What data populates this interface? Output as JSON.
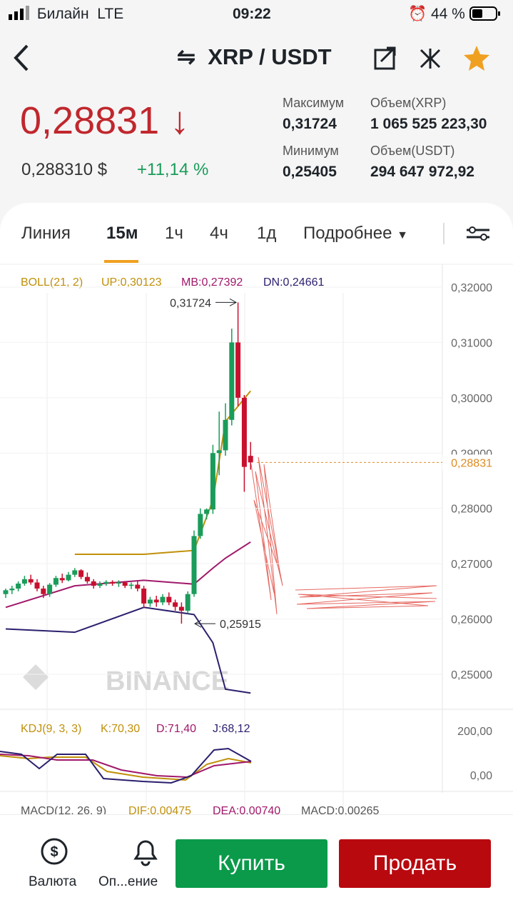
{
  "status": {
    "carrier": "Билайн",
    "network": "LTE",
    "time": "09:22",
    "battery": "44 %"
  },
  "header": {
    "pair": "XRP / USDT"
  },
  "price": {
    "last": "0,28831",
    "usd": "0,288310 $",
    "change": "+11,14 %"
  },
  "stats": {
    "high_label": "Максимум",
    "high": "0,31724",
    "low_label": "Минимум",
    "low": "0,25405",
    "vol_xrp_label": "Объем(XRP)",
    "vol_xrp": "1 065 525 223,30",
    "vol_usdt_label": "Объем(USDT)",
    "vol_usdt": "294 647 972,92"
  },
  "tabs": [
    "Линия",
    "15м",
    "1ч",
    "4ч",
    "1д",
    "Подробнее"
  ],
  "chart": {
    "boll": "BOLL(21, 2)",
    "up": "UP:0,30123",
    "mb": "MB:0,27392",
    "dn": "DN:0,24661",
    "watermark": "BINANCE",
    "ylim": [
      0.25,
      0.32
    ],
    "yticks": [
      {
        "value": 0.32,
        "label": "0,32000"
      },
      {
        "value": 0.31,
        "label": "0,31000"
      },
      {
        "value": 0.3,
        "label": "0,30000"
      },
      {
        "value": 0.29,
        "label": "0,29000"
      },
      {
        "value": 0.28,
        "label": "0,28000"
      },
      {
        "value": 0.27,
        "label": "0,27000"
      },
      {
        "value": 0.26,
        "label": "0,26000"
      },
      {
        "value": 0.25,
        "label": "0,25000"
      }
    ],
    "current": {
      "value": 0.28831,
      "label": "0,28831"
    },
    "max_note": {
      "value": 0.31724,
      "label": "0,31724"
    },
    "min_note": {
      "value": 0.25915,
      "label": "0,25915"
    },
    "open": [
      0.2645,
      0.2652,
      0.2655,
      0.2664,
      0.2672,
      0.2666,
      0.2655,
      0.2645,
      0.2662,
      0.2674,
      0.267,
      0.268,
      0.2688,
      0.2676,
      0.2668,
      0.266,
      0.2664,
      0.2667,
      0.2664,
      0.2666,
      0.266,
      0.2662,
      0.2655,
      0.2628,
      0.2635,
      0.263,
      0.264,
      0.263,
      0.2622,
      0.2615,
      0.2645,
      0.275,
      0.279,
      0.2798,
      0.29,
      0.2905,
      0.296,
      0.31,
      0.3,
      0.2895
    ],
    "high": [
      0.2655,
      0.266,
      0.2668,
      0.2678,
      0.268,
      0.2672,
      0.266,
      0.2665,
      0.2678,
      0.2682,
      0.2685,
      0.2692,
      0.269,
      0.2684,
      0.2672,
      0.2668,
      0.267,
      0.267,
      0.267,
      0.2668,
      0.2666,
      0.2668,
      0.266,
      0.264,
      0.2642,
      0.2645,
      0.2648,
      0.2635,
      0.263,
      0.265,
      0.276,
      0.28,
      0.28,
      0.2915,
      0.2975,
      0.299,
      0.3125,
      0.31724,
      0.3005,
      0.292
    ],
    "low": [
      0.2638,
      0.2645,
      0.265,
      0.266,
      0.2662,
      0.265,
      0.2638,
      0.264,
      0.2658,
      0.2665,
      0.2668,
      0.2676,
      0.2672,
      0.2664,
      0.2655,
      0.2656,
      0.266,
      0.266,
      0.2658,
      0.2656,
      0.2654,
      0.265,
      0.262,
      0.2622,
      0.2622,
      0.2625,
      0.2625,
      0.2615,
      0.25915,
      0.261,
      0.264,
      0.2745,
      0.278,
      0.279,
      0.286,
      0.2895,
      0.295,
      0.2985,
      0.283,
      0.287
    ],
    "close": [
      0.2652,
      0.2655,
      0.2664,
      0.2672,
      0.2666,
      0.2655,
      0.2645,
      0.2662,
      0.2674,
      0.267,
      0.268,
      0.2688,
      0.2676,
      0.2668,
      0.266,
      0.2664,
      0.2667,
      0.2664,
      0.2666,
      0.266,
      0.2662,
      0.2655,
      0.2628,
      0.2635,
      0.263,
      0.264,
      0.263,
      0.2622,
      0.2615,
      0.2645,
      0.275,
      0.279,
      0.2798,
      0.29,
      0.2905,
      0.296,
      0.31,
      0.3,
      0.2875,
      0.28831
    ],
    "band_index": [
      0,
      11,
      22,
      30,
      33,
      35,
      39
    ],
    "band_up": [
      null,
      0.2717,
      0.2717,
      0.2724,
      0.2815,
      0.2957,
      0.30123
    ],
    "band_mid": [
      0.2621,
      0.266,
      0.267,
      0.2663,
      0.2692,
      0.271,
      0.27392
    ],
    "band_dn": [
      0.2582,
      0.2576,
      0.2621,
      0.2608,
      0.2557,
      0.2473,
      0.24661
    ]
  },
  "kdj": {
    "label": "KDJ(9, 3, 3)",
    "k": "K:70,30",
    "d": "D:71,40",
    "j": "J:68,12",
    "ticks": [
      "200,00",
      "0,00"
    ]
  },
  "macd": {
    "label": "MACD(12, 26, 9)",
    "dif": "DIF:0,00475",
    "dea": "DEA:0,00740",
    "macd": "MACD:0,00265"
  },
  "bottom": {
    "currency": "Валюта",
    "alert": "Оп...ение",
    "buy": "Купить",
    "sell": "Продать"
  }
}
